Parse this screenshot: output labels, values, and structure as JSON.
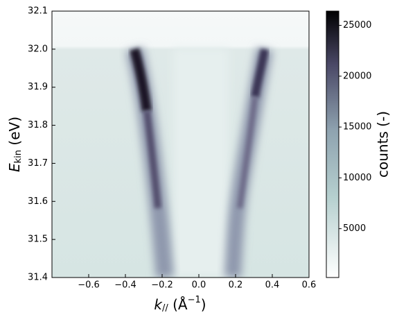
{
  "chart_data": {
    "type": "heatmap",
    "xlabel": [
      "k",
      "//",
      " (Å",
      "−1",
      ")"
    ],
    "ylabel": [
      "E",
      "kin",
      " (eV)"
    ],
    "xlim": [
      -0.8,
      0.6
    ],
    "xticks": [
      {
        "value": -0.6,
        "label": "−0.6"
      },
      {
        "value": -0.4,
        "label": "−0.4"
      },
      {
        "value": -0.2,
        "label": "−0.2"
      },
      {
        "value": 0,
        "label": "0.0"
      },
      0.2,
      0.4,
      0.6
    ],
    "ylim": [
      31.4,
      32.1
    ],
    "yticks": [
      31.4,
      31.5,
      31.6,
      31.7,
      31.8,
      31.9,
      {
        "value": 32,
        "label": "32.0"
      },
      32.1
    ],
    "colorbar": {
      "label": "counts (-)",
      "clim": [
        200,
        26400
      ],
      "ticks": [
        5000,
        10000,
        15000,
        20000,
        25000
      ],
      "colormap": "bone_r"
    }
  }
}
